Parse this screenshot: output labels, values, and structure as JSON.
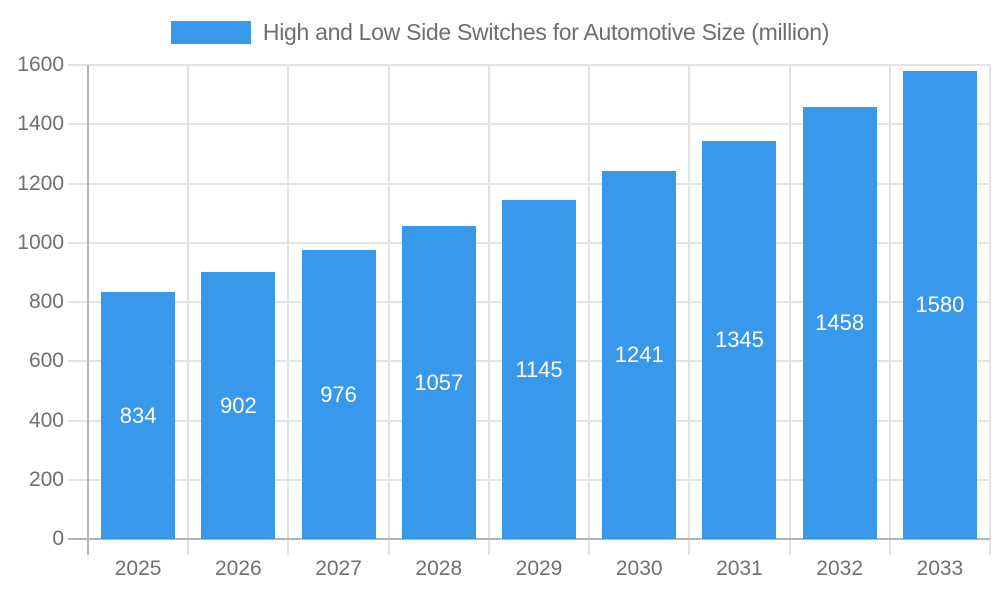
{
  "chart_data": {
    "type": "bar",
    "title": "High and Low Side Switches for Automotive Size (million)",
    "categories": [
      "2025",
      "2026",
      "2027",
      "2028",
      "2029",
      "2030",
      "2031",
      "2032",
      "2033"
    ],
    "values": [
      834,
      902,
      976,
      1057,
      1145,
      1241,
      1345,
      1458,
      1580
    ],
    "ylim": [
      0,
      1600
    ],
    "ytick_step": 200,
    "ytick_labels": [
      "0",
      "200",
      "400",
      "600",
      "800",
      "1000",
      "1200",
      "1400",
      "1600"
    ],
    "legend_position": "top",
    "grid": true,
    "data_labels": "inside-center",
    "colors": {
      "bar": "#3899EC",
      "bar_label": "#ffffff",
      "axis_text": "#707070",
      "title_text": "#6e6e6e",
      "grid_line": "#e3e3e3",
      "axis_line": "#b3b3b3",
      "background": "#ffffff"
    }
  }
}
